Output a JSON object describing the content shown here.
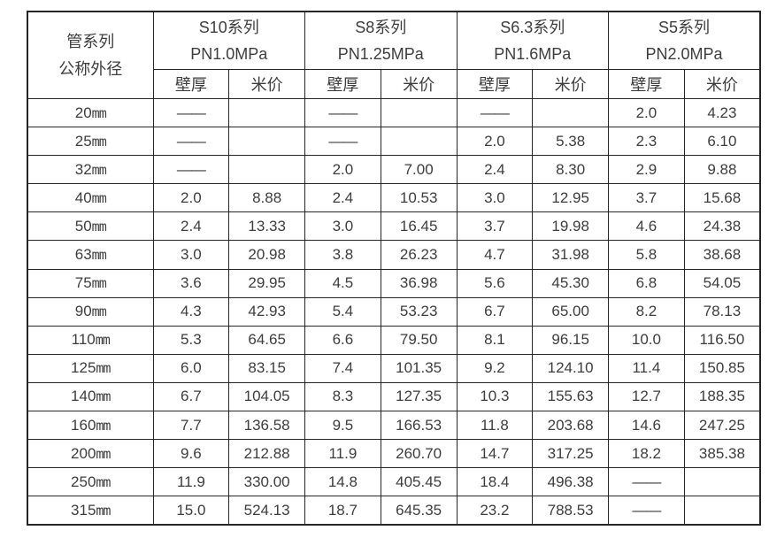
{
  "colors": {
    "border": "#262626",
    "text": "#3d3d3d",
    "background": "#ffffff"
  },
  "table": {
    "corner_header": {
      "line1": "管系列",
      "line2": "公称外径"
    },
    "series": [
      {
        "name": "S10系列",
        "pressure": "PN1.0MPa"
      },
      {
        "name": "S8系列",
        "pressure": "PN1.25MPa"
      },
      {
        "name": "S6.3系列",
        "pressure": "PN1.6MPa"
      },
      {
        "name": "S5系列",
        "pressure": "PN2.0MPa"
      }
    ],
    "sub_headers": [
      "壁厚",
      "米价"
    ],
    "dash_symbol": "——",
    "rows": [
      {
        "size": "20",
        "unit": "mm",
        "values": [
          "——",
          "",
          "——",
          "",
          "——",
          "",
          "2.0",
          "4.23"
        ]
      },
      {
        "size": "25",
        "unit": "mm",
        "values": [
          "——",
          "",
          "——",
          "",
          "2.0",
          "5.38",
          "2.3",
          "6.10"
        ]
      },
      {
        "size": "32",
        "unit": "mm",
        "values": [
          "——",
          "",
          "2.0",
          "7.00",
          "2.4",
          "8.30",
          "2.9",
          "9.88"
        ]
      },
      {
        "size": "40",
        "unit": "mm",
        "values": [
          "2.0",
          "8.88",
          "2.4",
          "10.53",
          "3.0",
          "12.95",
          "3.7",
          "15.68"
        ]
      },
      {
        "size": "50",
        "unit": "mm",
        "values": [
          "2.4",
          "13.33",
          "3.0",
          "16.45",
          "3.7",
          "19.98",
          "4.6",
          "24.38"
        ]
      },
      {
        "size": "63",
        "unit": "mm",
        "values": [
          "3.0",
          "20.98",
          "3.8",
          "26.23",
          "4.7",
          "31.98",
          "5.8",
          "38.68"
        ]
      },
      {
        "size": "75",
        "unit": "mm",
        "values": [
          "3.6",
          "29.95",
          "4.5",
          "36.98",
          "5.6",
          "45.30",
          "6.8",
          "54.05"
        ]
      },
      {
        "size": "90",
        "unit": "mm",
        "values": [
          "4.3",
          "42.93",
          "5.4",
          "53.23",
          "6.7",
          "65.00",
          "8.2",
          "78.13"
        ]
      },
      {
        "size": "110",
        "unit": "mm",
        "values": [
          "5.3",
          "64.65",
          "6.6",
          "79.50",
          "8.1",
          "96.15",
          "10.0",
          "116.50"
        ]
      },
      {
        "size": "125",
        "unit": "mm",
        "values": [
          "6.0",
          "83.15",
          "7.4",
          "101.35",
          "9.2",
          "124.10",
          "11.4",
          "150.85"
        ]
      },
      {
        "size": "140",
        "unit": "mm",
        "values": [
          "6.7",
          "104.05",
          "8.3",
          "127.35",
          "10.3",
          "155.63",
          "12.7",
          "188.35"
        ]
      },
      {
        "size": "160",
        "unit": "mm",
        "values": [
          "7.7",
          "136.58",
          "9.5",
          "166.53",
          "11.8",
          "203.68",
          "14.6",
          "247.25"
        ]
      },
      {
        "size": "200",
        "unit": "mm",
        "values": [
          "9.6",
          "212.88",
          "11.9",
          "260.70",
          "14.7",
          "317.25",
          "18.2",
          "385.38"
        ]
      },
      {
        "size": "250",
        "unit": "mm",
        "values": [
          "11.9",
          "330.00",
          "14.8",
          "405.45",
          "18.4",
          "496.38",
          "——",
          ""
        ]
      },
      {
        "size": "315",
        "unit": "mm",
        "values": [
          "15.0",
          "524.13",
          "18.7",
          "645.35",
          "23.2",
          "788.53",
          "——",
          ""
        ]
      }
    ]
  }
}
